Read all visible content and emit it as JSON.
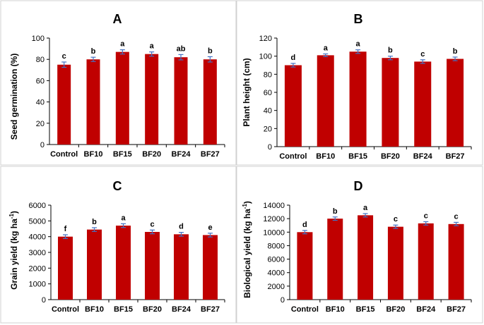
{
  "colors": {
    "bar": "#c00000",
    "error_bar": "#4472c4"
  },
  "chart_data": [
    {
      "type": "bar",
      "panel": "A",
      "title": "A",
      "ylabel": "Seed germination (%)",
      "ylabel_sup": "",
      "ylabel_tail": "",
      "categories": [
        "Control",
        "BF10",
        "BF15",
        "BF20",
        "BF24",
        "BF27"
      ],
      "values": [
        75,
        80,
        87,
        85,
        82,
        80
      ],
      "errors": [
        2.5,
        2,
        2,
        2,
        2.5,
        2.5
      ],
      "letters": [
        "c",
        "b",
        "a",
        "a",
        "ab",
        "b"
      ],
      "ylim": [
        0,
        100
      ],
      "yticks": [
        0,
        20,
        40,
        60,
        80,
        100
      ],
      "ytick_labels": [
        "0",
        "20",
        "40",
        "60",
        "80",
        "100"
      ]
    },
    {
      "type": "bar",
      "panel": "B",
      "title": "B",
      "ylabel": "Plant height (cm)",
      "ylabel_sup": "",
      "ylabel_tail": "",
      "categories": [
        "Control",
        "BF10",
        "BF15",
        "BF20",
        "BF24",
        "BF27"
      ],
      "values": [
        90,
        101,
        105,
        98,
        94,
        97
      ],
      "errors": [
        2,
        1.5,
        2,
        2,
        2,
        2
      ],
      "letters": [
        "d",
        "a",
        "a",
        "b",
        "c",
        "b"
      ],
      "ylim": [
        0,
        120
      ],
      "yticks": [
        0,
        20,
        40,
        60,
        80,
        100,
        120
      ],
      "ytick_labels": [
        "0",
        "20",
        "40",
        "60",
        "80",
        "100",
        "120"
      ]
    },
    {
      "type": "bar",
      "panel": "C",
      "title": "C",
      "ylabel": "Grain yield (kg ha",
      "ylabel_sup": "-1",
      "ylabel_tail": ")",
      "categories": [
        "Control",
        "BF10",
        "BF15",
        "BF20",
        "BF24",
        "BF27"
      ],
      "values": [
        4000,
        4450,
        4700,
        4300,
        4150,
        4100
      ],
      "errors": [
        120,
        120,
        120,
        120,
        120,
        120
      ],
      "letters": [
        "f",
        "b",
        "a",
        "c",
        "d",
        "e"
      ],
      "ylim": [
        0,
        6000
      ],
      "yticks": [
        0,
        1000,
        2000,
        3000,
        4000,
        5000,
        6000
      ],
      "ytick_labels": [
        "0",
        "1000",
        "2000",
        "3000",
        "4000",
        "5000",
        "6000"
      ]
    },
    {
      "type": "bar",
      "panel": "D",
      "title": "D",
      "ylabel": "Biological yield (kg ha",
      "ylabel_sup": "-1",
      "ylabel_tail": ")",
      "categories": [
        "Control",
        "BF10",
        "BF15",
        "BF20",
        "BF24",
        "BF27"
      ],
      "values": [
        10000,
        12000,
        12500,
        10800,
        11300,
        11200
      ],
      "errors": [
        250,
        250,
        250,
        250,
        250,
        250
      ],
      "letters": [
        "d",
        "b",
        "a",
        "c",
        "c",
        "c"
      ],
      "ylim": [
        0,
        14000
      ],
      "yticks": [
        0,
        2000,
        4000,
        6000,
        8000,
        10000,
        12000,
        14000
      ],
      "ytick_labels": [
        "0",
        "2000",
        "4000",
        "6000",
        "8000",
        "10000",
        "12000",
        "14000"
      ]
    }
  ]
}
